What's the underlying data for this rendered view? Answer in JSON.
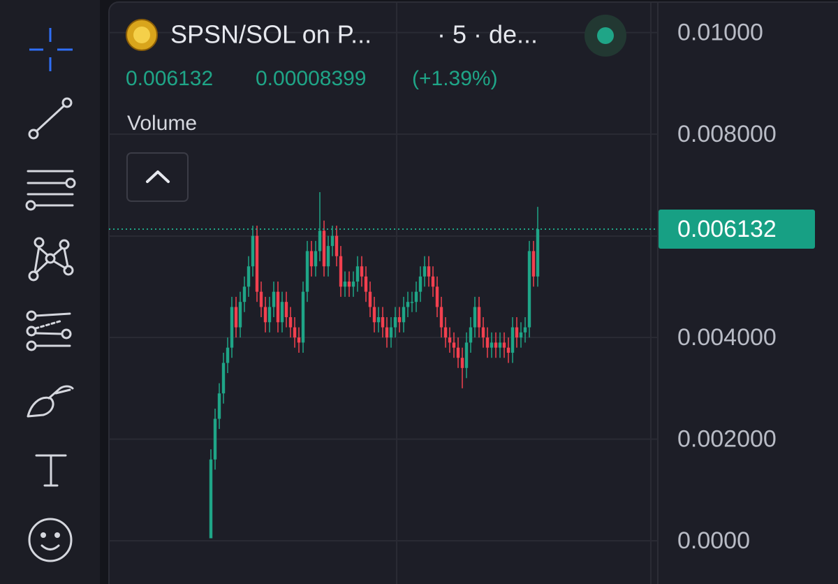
{
  "chart_data": {
    "type": "candlestick",
    "title": "SPSN/SOL on P...",
    "subtitle": "· 5 · de...",
    "change": "0.00008399",
    "change_percent": "(+1.39%)",
    "study": "Volume",
    "up_color": "#1fa587",
    "down_color": "#f2404f",
    "grid": true,
    "ylim": [
      -0.00085,
      0.01064
    ],
    "yticks": [
      {
        "value": 0.01,
        "label": "0.01000"
      },
      {
        "value": 0.008,
        "label": "0.008000"
      },
      {
        "value": 0.004,
        "label": "0.004000"
      },
      {
        "value": 0.002,
        "label": "0.002000"
      },
      {
        "value": 0,
        "label": "0.0000"
      }
    ],
    "open": [
      5e-05,
      0.0016,
      0.0024,
      0.0029,
      0.0035,
      0.0038,
      0.0046,
      0.0042,
      0.0047,
      0.005,
      0.0054,
      0.006,
      0.0049,
      0.0046,
      0.0043,
      0.0046,
      0.0049,
      0.0043,
      0.0047,
      0.0044,
      0.0042,
      0.004,
      0.0039,
      0.0049,
      0.0057,
      0.0054,
      0.0057,
      0.0061,
      0.0054,
      0.0058,
      0.006,
      0.0056,
      0.005,
      0.0051,
      0.005,
      0.0051,
      0.0054,
      0.0052,
      0.0049,
      0.0046,
      0.0043,
      0.0044,
      0.0042,
      0.004,
      0.0042,
      0.0044,
      0.0043,
      0.0046,
      0.0047,
      0.0047,
      0.0049,
      0.0052,
      0.0054,
      0.0052,
      0.005,
      0.0046,
      0.0042,
      0.004,
      0.0039,
      0.0038,
      0.0036,
      0.0034,
      0.0039,
      0.0042,
      0.0046,
      0.0042,
      0.004,
      0.0038,
      0.0039,
      0.0038,
      0.0039,
      0.0038,
      0.0037,
      0.0042,
      0.004,
      0.0041,
      0.0042,
      0.0057,
      0.0052
    ],
    "high": [
      0.0018,
      0.0026,
      0.0031,
      0.0037,
      0.004,
      0.0048,
      0.0048,
      0.0049,
      0.0052,
      0.0056,
      0.0062,
      0.0062,
      0.0051,
      0.0048,
      0.0048,
      0.0051,
      0.0051,
      0.0049,
      0.0049,
      0.0046,
      0.0044,
      0.0042,
      0.0051,
      0.0059,
      0.0059,
      0.0059,
      0.00686,
      0.0063,
      0.006,
      0.0062,
      0.0062,
      0.0058,
      0.0053,
      0.0053,
      0.0053,
      0.0056,
      0.0056,
      0.0054,
      0.0051,
      0.0048,
      0.0046,
      0.0046,
      0.0044,
      0.0044,
      0.0046,
      0.0046,
      0.0048,
      0.0049,
      0.0049,
      0.0051,
      0.0054,
      0.0056,
      0.0056,
      0.0054,
      0.0052,
      0.0048,
      0.0044,
      0.0042,
      0.0041,
      0.004,
      0.0038,
      0.0041,
      0.0044,
      0.0048,
      0.0048,
      0.0044,
      0.0042,
      0.0041,
      0.0041,
      0.0041,
      0.0041,
      0.004,
      0.0044,
      0.0044,
      0.0043,
      0.0044,
      0.0059,
      0.0059,
      0.00657
    ],
    "low": [
      5e-05,
      0.0014,
      0.0022,
      0.0027,
      0.0033,
      0.0036,
      0.004,
      0.004,
      0.0045,
      0.0048,
      0.0052,
      0.0047,
      0.0044,
      0.0041,
      0.0041,
      0.0044,
      0.0041,
      0.0041,
      0.0042,
      0.004,
      0.0038,
      0.0037,
      0.0037,
      0.0047,
      0.0052,
      0.0052,
      0.0055,
      0.0052,
      0.0052,
      0.0056,
      0.0054,
      0.0048,
      0.0048,
      0.0048,
      0.0048,
      0.0049,
      0.005,
      0.0047,
      0.0044,
      0.0041,
      0.0041,
      0.004,
      0.0038,
      0.0038,
      0.004,
      0.0041,
      0.0041,
      0.0044,
      0.0045,
      0.0045,
      0.0047,
      0.005,
      0.005,
      0.0048,
      0.0044,
      0.004,
      0.0038,
      0.0037,
      0.0036,
      0.0034,
      0.003,
      0.0032,
      0.0037,
      0.004,
      0.004,
      0.0038,
      0.0036,
      0.0036,
      0.0036,
      0.0036,
      0.0036,
      0.0035,
      0.0035,
      0.0038,
      0.0038,
      0.0039,
      0.004,
      0.005,
      0.005
    ],
    "close": [
      0.0016,
      0.0024,
      0.0029,
      0.0035,
      0.0038,
      0.0046,
      0.0042,
      0.0047,
      0.005,
      0.0054,
      0.006,
      0.0049,
      0.0046,
      0.0043,
      0.0046,
      0.0049,
      0.0043,
      0.0047,
      0.0044,
      0.0042,
      0.004,
      0.0039,
      0.0049,
      0.0057,
      0.0054,
      0.0057,
      0.0061,
      0.0054,
      0.0058,
      0.006,
      0.0056,
      0.005,
      0.0051,
      0.005,
      0.0051,
      0.0054,
      0.0052,
      0.0049,
      0.0046,
      0.0043,
      0.0044,
      0.0042,
      0.004,
      0.0042,
      0.0044,
      0.0043,
      0.0046,
      0.0047,
      0.0047,
      0.0049,
      0.0052,
      0.0054,
      0.0052,
      0.005,
      0.0046,
      0.0042,
      0.004,
      0.0039,
      0.0038,
      0.0036,
      0.0034,
      0.0039,
      0.0042,
      0.0046,
      0.0042,
      0.004,
      0.0038,
      0.0039,
      0.0038,
      0.0039,
      0.0038,
      0.0037,
      0.0042,
      0.004,
      0.0041,
      0.0042,
      0.0057,
      0.0052,
      0.006132
    ]
  }
}
